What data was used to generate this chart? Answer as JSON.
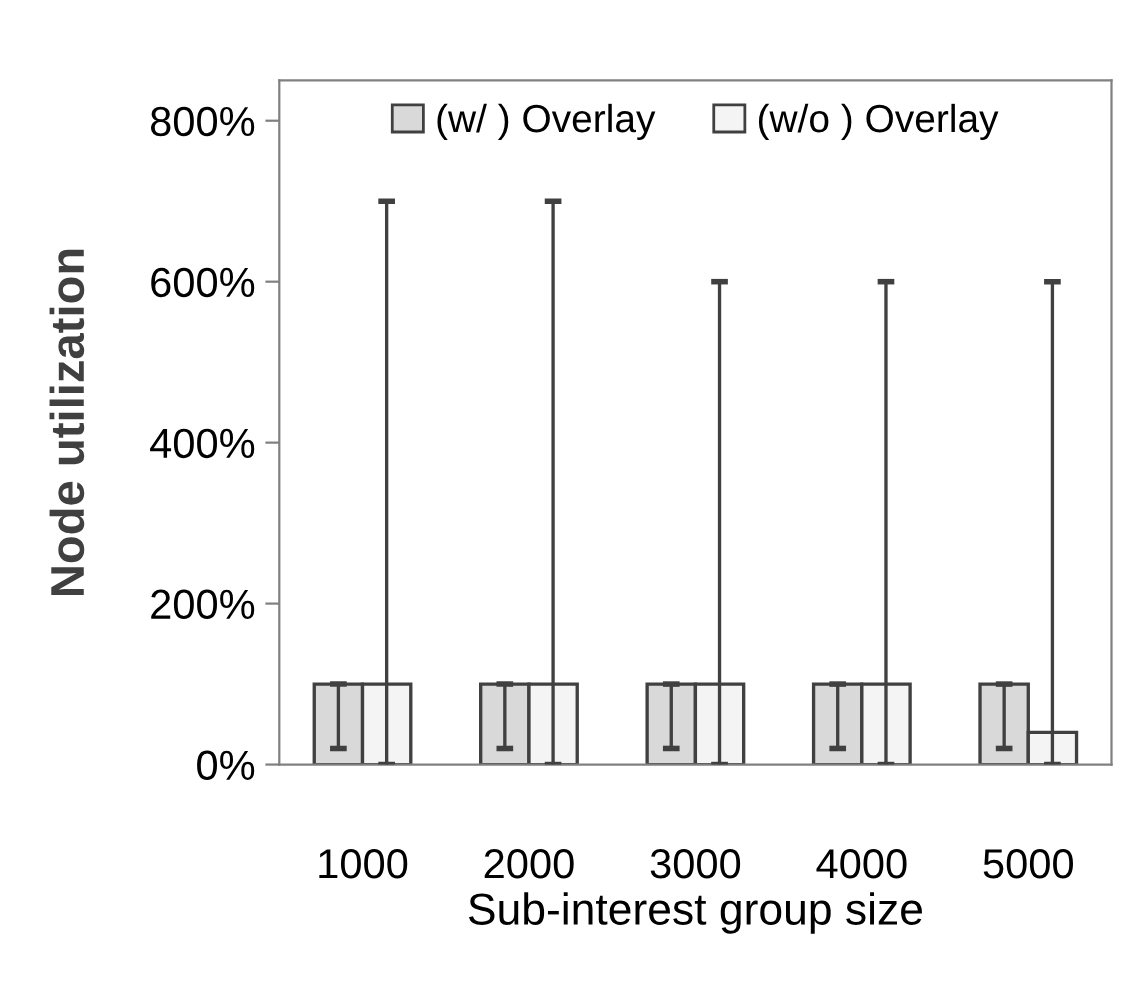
{
  "chart_data": {
    "type": "bar",
    "xlabel": "Sub-interest group size",
    "ylabel": "Node utilization",
    "categories": [
      "1000",
      "2000",
      "3000",
      "4000",
      "5000"
    ],
    "series": [
      {
        "name": "(w/ ) Overlay",
        "color": "#d9d9d9",
        "values": [
          100,
          100,
          100,
          100,
          100
        ],
        "errors": [
          [
            20,
            100
          ],
          [
            20,
            100
          ],
          [
            20,
            100
          ],
          [
            20,
            100
          ],
          [
            20,
            100
          ]
        ]
      },
      {
        "name": "(w/o ) Overlay",
        "color": "#f4f4f4",
        "values": [
          100,
          100,
          100,
          100,
          40
        ],
        "errors": [
          [
            0,
            700
          ],
          [
            0,
            700
          ],
          [
            0,
            600
          ],
          [
            0,
            600
          ],
          [
            0,
            600
          ]
        ]
      }
    ],
    "ylim": [
      0,
      850
    ],
    "yticks": [
      {
        "value": 0,
        "label": "0%"
      },
      {
        "value": 200,
        "label": "200%"
      },
      {
        "value": 400,
        "label": "400%"
      },
      {
        "value": 600,
        "label": "600%"
      },
      {
        "value": 800,
        "label": "800%"
      }
    ],
    "grid": false,
    "legend": "top"
  }
}
